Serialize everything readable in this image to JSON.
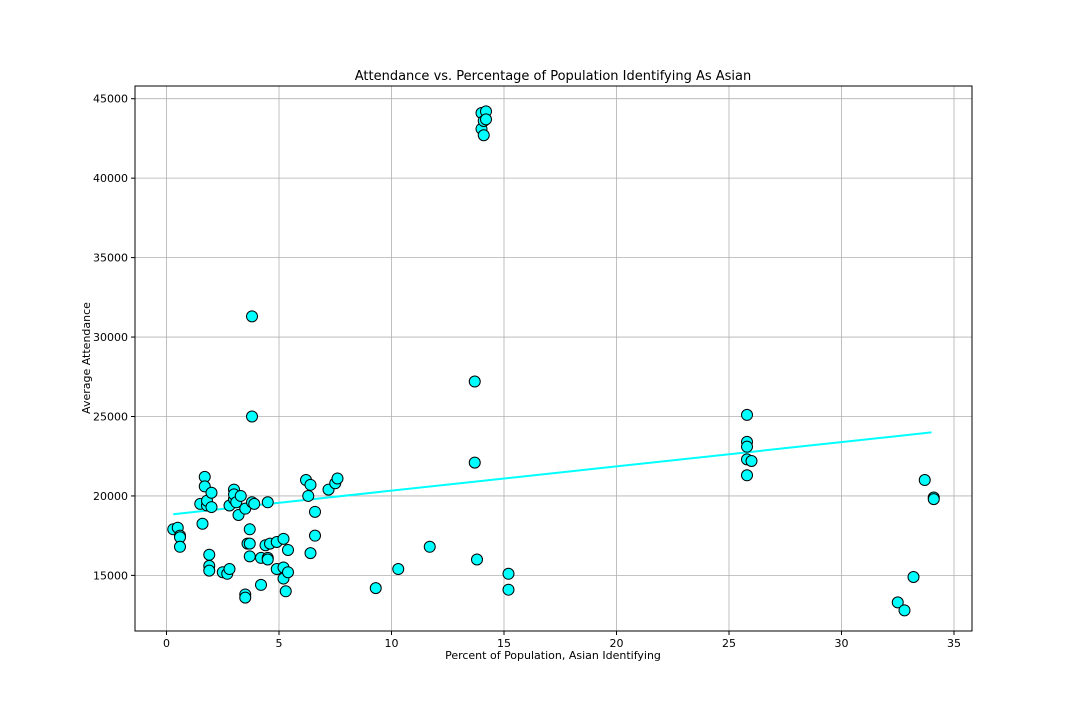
{
  "chart_data": {
    "type": "scatter",
    "title": "Attendance vs. Percentage of Population Identifying As Asian",
    "xlabel": "Percent of Population, Asian Identifying",
    "ylabel": "Average Attendance",
    "xlim": [
      -1.4,
      35.8
    ],
    "ylim": [
      11500,
      45800
    ],
    "xticks": [
      0,
      5,
      10,
      15,
      20,
      25,
      30,
      35
    ],
    "yticks": [
      15000,
      20000,
      25000,
      30000,
      35000,
      40000,
      45000
    ],
    "xtick_labels": [
      "0",
      "5",
      "10",
      "15",
      "20",
      "25",
      "30",
      "35"
    ],
    "ytick_labels": [
      "15000",
      "20000",
      "25000",
      "30000",
      "35000",
      "40000",
      "45000"
    ],
    "grid": true,
    "marker_color": "#00ffff",
    "marker_edge_color": "#000000",
    "trendline": {
      "color": "#00ffff",
      "points": [
        [
          0.3,
          18850
        ],
        [
          34.0,
          24000
        ]
      ]
    },
    "points": [
      [
        0.3,
        17900
      ],
      [
        0.5,
        18000
      ],
      [
        0.6,
        17500
      ],
      [
        0.6,
        17400
      ],
      [
        0.6,
        16800
      ],
      [
        1.5,
        19500
      ],
      [
        1.6,
        18250
      ],
      [
        1.7,
        21200
      ],
      [
        1.7,
        20600
      ],
      [
        1.8,
        19400
      ],
      [
        1.8,
        19700
      ],
      [
        2.0,
        20200
      ],
      [
        2.0,
        19300
      ],
      [
        1.9,
        16300
      ],
      [
        1.9,
        15600
      ],
      [
        1.9,
        15300
      ],
      [
        2.5,
        15200
      ],
      [
        2.7,
        15100
      ],
      [
        2.8,
        15400
      ],
      [
        2.8,
        19400
      ],
      [
        3.0,
        19800
      ],
      [
        3.0,
        20400
      ],
      [
        3.0,
        20100
      ],
      [
        3.1,
        19600
      ],
      [
        3.2,
        18800
      ],
      [
        3.3,
        20000
      ],
      [
        3.5,
        19200
      ],
      [
        3.6,
        17000
      ],
      [
        3.7,
        17000
      ],
      [
        3.7,
        17900
      ],
      [
        3.7,
        16200
      ],
      [
        3.5,
        13800
      ],
      [
        3.5,
        13600
      ],
      [
        3.8,
        19600
      ],
      [
        3.9,
        19500
      ],
      [
        3.8,
        31300
      ],
      [
        3.8,
        25000
      ],
      [
        4.2,
        16100
      ],
      [
        4.2,
        14400
      ],
      [
        4.4,
        16900
      ],
      [
        4.5,
        16100
      ],
      [
        4.5,
        16000
      ],
      [
        4.6,
        17000
      ],
      [
        4.5,
        19600
      ],
      [
        4.9,
        17100
      ],
      [
        4.9,
        15400
      ],
      [
        5.2,
        17300
      ],
      [
        5.2,
        15500
      ],
      [
        5.2,
        14800
      ],
      [
        5.3,
        14000
      ],
      [
        5.4,
        16600
      ],
      [
        5.4,
        15200
      ],
      [
        6.2,
        21000
      ],
      [
        6.3,
        20000
      ],
      [
        6.4,
        20700
      ],
      [
        6.4,
        16400
      ],
      [
        6.6,
        19000
      ],
      [
        6.6,
        17500
      ],
      [
        7.2,
        20400
      ],
      [
        7.5,
        20800
      ],
      [
        7.6,
        21100
      ],
      [
        9.3,
        14200
      ],
      [
        10.3,
        15400
      ],
      [
        11.7,
        16800
      ],
      [
        13.7,
        27200
      ],
      [
        13.7,
        22100
      ],
      [
        13.8,
        16000
      ],
      [
        14.0,
        43100
      ],
      [
        14.0,
        44100
      ],
      [
        14.1,
        43600
      ],
      [
        14.2,
        44200
      ],
      [
        14.2,
        43700
      ],
      [
        14.1,
        42700
      ],
      [
        15.2,
        15100
      ],
      [
        15.2,
        14100
      ],
      [
        25.8,
        25100
      ],
      [
        25.8,
        23400
      ],
      [
        25.8,
        23100
      ],
      [
        25.8,
        22300
      ],
      [
        26.0,
        22200
      ],
      [
        25.8,
        21300
      ],
      [
        32.5,
        13300
      ],
      [
        32.8,
        12800
      ],
      [
        33.2,
        14900
      ],
      [
        33.7,
        21000
      ],
      [
        34.1,
        19900
      ],
      [
        34.1,
        19800
      ]
    ]
  }
}
